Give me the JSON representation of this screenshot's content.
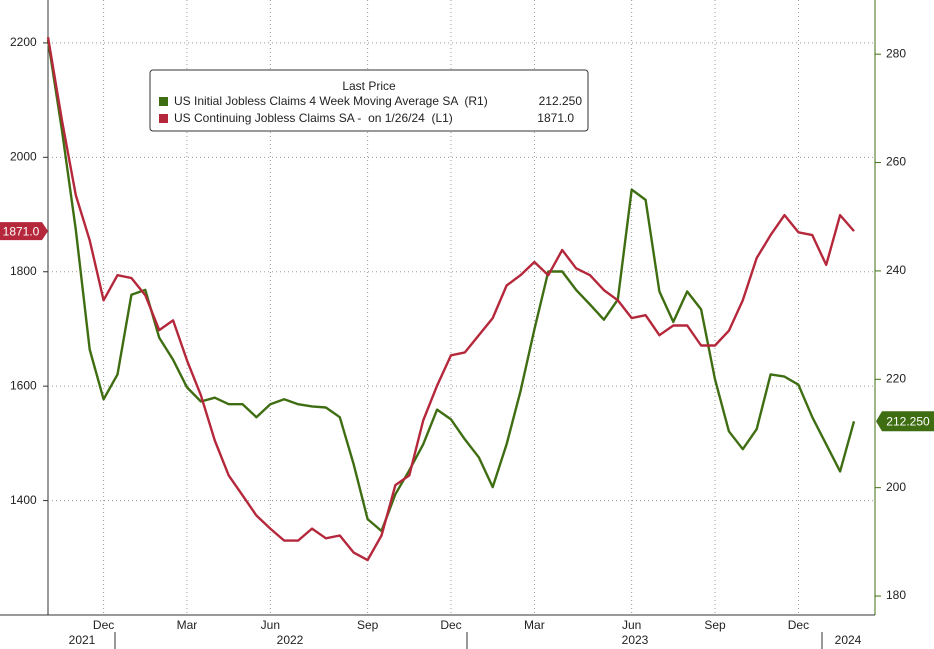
{
  "chart_data": {
    "type": "line",
    "legend_title": "Last Price",
    "categories": [
      null,
      null,
      null,
      null,
      "Dec",
      null,
      null,
      null,
      null,
      null,
      "Mar",
      null,
      null,
      null,
      null,
      null,
      "Jun",
      null,
      null,
      null,
      null,
      null,
      null,
      "Sep",
      null,
      null,
      null,
      null,
      null,
      "Dec",
      null,
      null,
      null,
      null,
      null,
      "Mar",
      null,
      null,
      null,
      null,
      null,
      null,
      "Jun",
      null,
      null,
      null,
      null,
      null,
      "Sep",
      null,
      null,
      null,
      null,
      null,
      "Dec",
      null,
      null,
      null,
      null
    ],
    "years": [
      "2021",
      "2022",
      "2023",
      "2024"
    ],
    "series": [
      {
        "name": "US Initial Jobless Claims 4 Week Moving Average SA  (R1)",
        "color": "#3f6e12",
        "axis": "y2",
        "last_value_label": "212.250",
        "values": [
          282.6,
          266.0,
          247.6,
          225.5,
          216.3,
          220.9,
          235.6,
          236.5,
          227.7,
          223.6,
          218.5,
          215.9,
          216.6,
          215.4,
          215.4,
          213.0,
          215.4,
          216.3,
          215.4,
          215.0,
          214.8,
          213.0,
          204.3,
          194.2,
          192.0,
          198.8,
          203.2,
          208.0,
          214.4,
          212.6,
          208.9,
          205.6,
          200.1,
          208.0,
          217.8,
          229.2,
          239.9,
          239.9,
          236.5,
          233.8,
          231.0,
          234.7,
          255.0,
          253.1,
          236.2,
          230.6,
          236.2,
          232.9,
          220.0,
          210.4,
          207.1,
          210.8,
          220.9,
          220.5,
          219.0,
          213.0,
          208.0,
          203.0,
          212.25
        ]
      },
      {
        "name": "US Continuing Jobless Claims SA -  on 1/26/24  (L1)",
        "color": "#b5283c",
        "axis": "y",
        "last_value_label": "1871.0",
        "values": [
          2210,
          2065,
          1934,
          1855,
          1750,
          1794,
          1789,
          1759,
          1698,
          1715,
          1645,
          1584,
          1505,
          1444,
          1409,
          1374,
          1351,
          1330,
          1330,
          1351,
          1334,
          1339,
          1309,
          1296,
          1339,
          1427,
          1444,
          1540,
          1601,
          1654,
          1659,
          1689,
          1719,
          1776,
          1794,
          1817,
          1794,
          1838,
          1806,
          1794,
          1768,
          1750,
          1719,
          1724,
          1689,
          1706,
          1706,
          1671,
          1671,
          1697,
          1750,
          1824,
          1864,
          1899,
          1869,
          1864,
          1812,
          1899,
          1871
        ]
      }
    ],
    "ylim": [
      1200,
      2275
    ],
    "yticks": [
      1400,
      1600,
      1800,
      2000,
      2200
    ],
    "y2lim": [
      176.5,
      290
    ],
    "y2ticks": [
      180,
      200,
      220,
      240,
      260,
      280
    ],
    "grid": true
  }
}
